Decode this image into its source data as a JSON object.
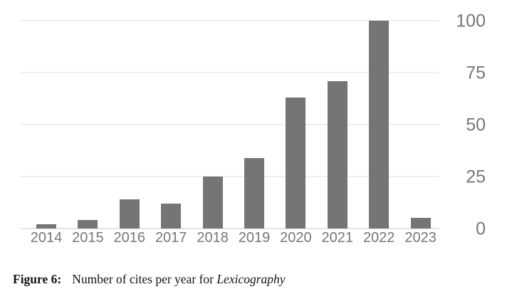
{
  "figure": {
    "label": "Figure 6:",
    "caption_text": "Number of cites per year for",
    "caption_italic": "Lexicography"
  },
  "chart_data": {
    "type": "bar",
    "title": "Number of cites per year for Lexicography",
    "xlabel": "",
    "ylabel": "",
    "categories": [
      "2014",
      "2015",
      "2016",
      "2017",
      "2018",
      "2019",
      "2020",
      "2021",
      "2022",
      "2023"
    ],
    "values": [
      2,
      4,
      14,
      12,
      25,
      34,
      63,
      71,
      100,
      5
    ],
    "ylim": [
      0,
      100
    ],
    "yticks": [
      0,
      25,
      50,
      75,
      100
    ],
    "ytick_labels": [
      "0",
      "25",
      "50",
      "75",
      "100"
    ],
    "ytick_side": "right",
    "grid": true,
    "legend": "none",
    "bar_color": "#757575",
    "label_color": "#777777",
    "gridline_color": "#efefef",
    "axis_line_color": "#e4e4e4"
  }
}
